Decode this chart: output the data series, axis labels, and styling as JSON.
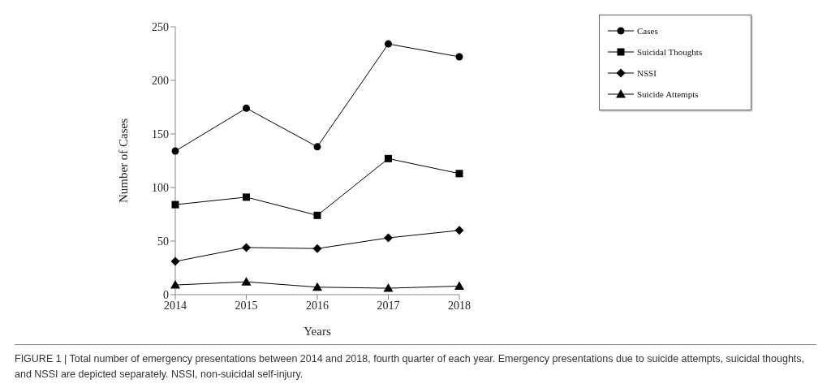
{
  "chart_data": {
    "type": "line",
    "xlabel": "Years",
    "ylabel": "Number of Cases",
    "categories": [
      "2014",
      "2015",
      "2016",
      "2017",
      "2018"
    ],
    "series": [
      {
        "name": "Cases",
        "color": "#000000",
        "marker": "circle",
        "values": [
          134,
          174,
          138,
          234,
          222
        ]
      },
      {
        "name": "Suicidal Thoughts",
        "color": "#000000",
        "marker": "square",
        "values": [
          84,
          91,
          74,
          127,
          113
        ]
      },
      {
        "name": "NSSI",
        "color": "#000000",
        "marker": "diamond",
        "values": [
          31,
          44,
          43,
          53,
          60
        ]
      },
      {
        "name": "Suicide Attempts",
        "color": "#000000",
        "marker": "triangle",
        "values": [
          9,
          12,
          7,
          6,
          8
        ]
      }
    ],
    "ylim": [
      0,
      250
    ],
    "yticks": [
      0,
      50,
      100,
      150,
      200,
      250
    ],
    "grid": false,
    "legend": "top right",
    "line_style": "solid",
    "annotations": [
      "FIGURE 1 | Total number of emergency presentations between 2014 and 2018, fourth quarter of each year. Emergency presentations due to suicide attempts, suicidal thoughts, and NSSI are depicted separately. NSSI, non-suicidal self-injury."
    ]
  }
}
